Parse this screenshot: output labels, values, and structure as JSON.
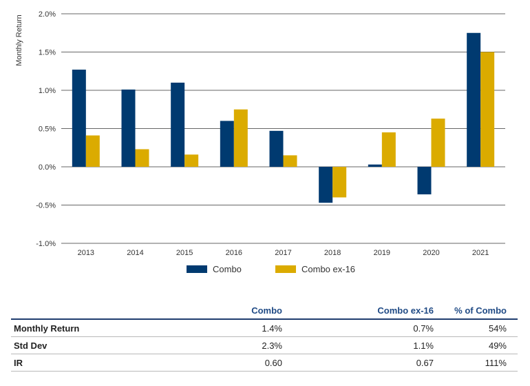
{
  "chart_data": {
    "type": "bar",
    "categories": [
      "2013",
      "2014",
      "2015",
      "2016",
      "2017",
      "2018",
      "2019",
      "2020",
      "2021"
    ],
    "series": [
      {
        "name": "Combo",
        "color": "#003a70",
        "values": [
          1.27,
          1.01,
          1.1,
          0.6,
          0.47,
          -0.47,
          0.03,
          -0.36,
          1.75
        ]
      },
      {
        "name": "Combo ex-16",
        "color": "#dbab00",
        "values": [
          0.41,
          0.23,
          0.16,
          0.75,
          0.15,
          -0.4,
          0.45,
          0.63,
          1.5
        ]
      }
    ],
    "ylabel": "Monthly Return",
    "ylim": [
      -1.0,
      2.0
    ],
    "yticks": [
      2.0,
      1.5,
      1.0,
      0.5,
      0.0,
      -0.5,
      -1.0
    ],
    "ytick_labels": [
      "2.0%",
      "1.5%",
      "1.0%",
      "0.5%",
      "0.0%",
      "-0.5%",
      "-1.0%"
    ],
    "grid": true,
    "legend_position": "bottom"
  },
  "table": {
    "headers": [
      "",
      "Combo",
      "Combo ex-16",
      "% of Combo"
    ],
    "rows": [
      {
        "label": "Monthly Return",
        "values": [
          "1.4%",
          "0.7%",
          "54%"
        ]
      },
      {
        "label": "Std Dev",
        "values": [
          "2.3%",
          "1.1%",
          "49%"
        ]
      },
      {
        "label": "IR",
        "values": [
          "0.60",
          "0.67",
          "111%"
        ]
      }
    ]
  }
}
